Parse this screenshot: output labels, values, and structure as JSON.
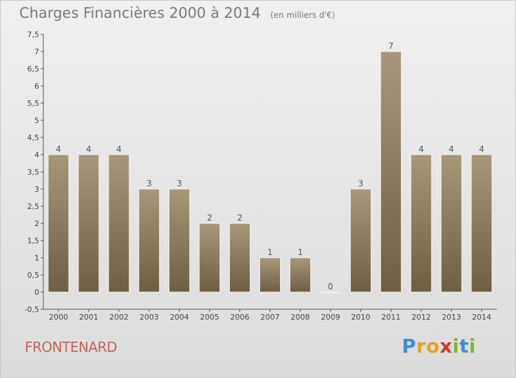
{
  "chart_data": {
    "type": "bar",
    "title": "Charges Financières 2000 à 2014",
    "subtitle": "(en milliers d'€)",
    "categories": [
      "2000",
      "2001",
      "2002",
      "2003",
      "2004",
      "2005",
      "2006",
      "2007",
      "2008",
      "2009",
      "2010",
      "2011",
      "2012",
      "2013",
      "2014"
    ],
    "values": [
      4,
      4,
      4,
      3,
      3,
      2,
      2,
      1,
      1,
      0,
      3,
      7,
      4,
      4,
      4
    ],
    "data_labels": [
      "4",
      "4",
      "4",
      "3",
      "3",
      "2",
      "2",
      "1",
      "1",
      "0",
      "3",
      "7",
      "4",
      "4",
      "4"
    ],
    "ylim": [
      -0.5,
      7.5
    ],
    "yticks": [
      "-0,5",
      "0",
      "0,5",
      "1",
      "1,5",
      "2",
      "2,5",
      "3",
      "3,5",
      "4",
      "4,5",
      "5",
      "5,5",
      "6",
      "6,5",
      "7",
      "7,5"
    ],
    "ytick_values": [
      -0.5,
      0,
      0.5,
      1,
      1.5,
      2,
      2.5,
      3,
      3.5,
      4,
      4.5,
      5,
      5.5,
      6,
      6.5,
      7,
      7.5
    ],
    "grid": false,
    "legend": false,
    "bar_color": "#8b7a5e"
  },
  "footer": {
    "commune": "FRONTENARD",
    "logo_letters": [
      {
        "ch": "P",
        "color": "#3a8fd6"
      },
      {
        "ch": "r",
        "color": "#e8a21a"
      },
      {
        "ch": "o",
        "color": "#e8a21a"
      },
      {
        "ch": "x",
        "color": "#d83a2a"
      },
      {
        "ch": "i",
        "color": "#7cb82f"
      },
      {
        "ch": "t",
        "color": "#3a8fd6"
      },
      {
        "ch": "i",
        "color": "#7cb82f"
      }
    ]
  }
}
